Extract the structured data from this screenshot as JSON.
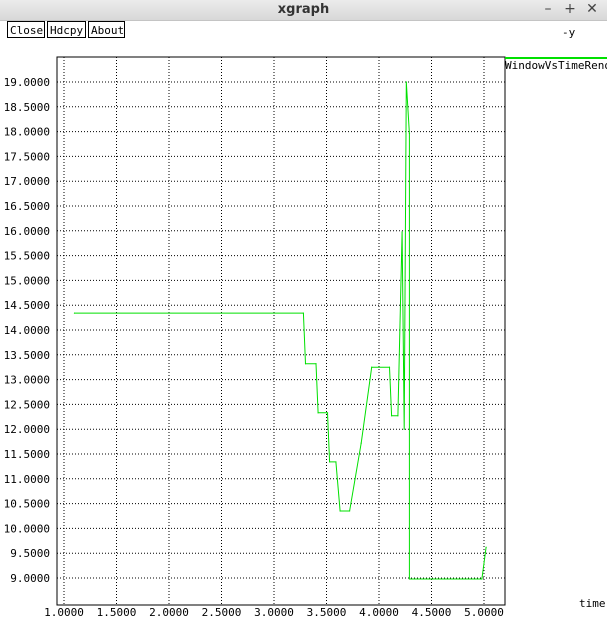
{
  "window": {
    "title": "xgraph"
  },
  "window_controls": {
    "minimize": "–",
    "maximize": "+",
    "close": "✕"
  },
  "toolbar": {
    "close_label": "Close",
    "hdcpy_label": "Hdcpy",
    "about_label": "About"
  },
  "chart_data": {
    "type": "line",
    "title": "",
    "xlabel": "time",
    "ylabel": "-y",
    "xlim": [
      0.9633,
      5.2
    ],
    "ylim": [
      8.48,
      19.52
    ],
    "grid": true,
    "legend": "top-right",
    "x_ticks": [
      "1.0000",
      "1.5000",
      "2.0000",
      "2.5000",
      "3.0000",
      "3.5000",
      "4.0000",
      "4.5000",
      "5.0000"
    ],
    "y_ticks": [
      "9.0000",
      "9.5000",
      "10.0000",
      "10.5000",
      "11.0000",
      "11.5000",
      "12.0000",
      "12.5000",
      "13.0000",
      "13.5000",
      "14.0000",
      "14.5000",
      "15.0000",
      "15.5000",
      "16.0000",
      "16.5000",
      "17.0000",
      "17.5000",
      "18.0000",
      "18.5000",
      "19.0000"
    ],
    "series": [
      {
        "name": "WindowVsTimeReno",
        "color": "#00e000",
        "x": [
          1.1,
          3.28,
          3.3,
          3.4,
          3.42,
          3.51,
          3.53,
          3.59,
          3.63,
          3.72,
          3.83,
          3.93,
          4.1,
          4.12,
          4.18,
          4.22,
          4.24,
          4.26,
          4.29,
          4.29,
          4.98,
          5.02
        ],
        "y": [
          14.34,
          14.34,
          13.32,
          13.32,
          12.33,
          12.33,
          11.34,
          11.34,
          10.35,
          10.35,
          11.72,
          13.25,
          13.25,
          12.27,
          12.27,
          15.98,
          12.0,
          19.0,
          17.96,
          8.98,
          8.98,
          9.62
        ]
      }
    ]
  }
}
